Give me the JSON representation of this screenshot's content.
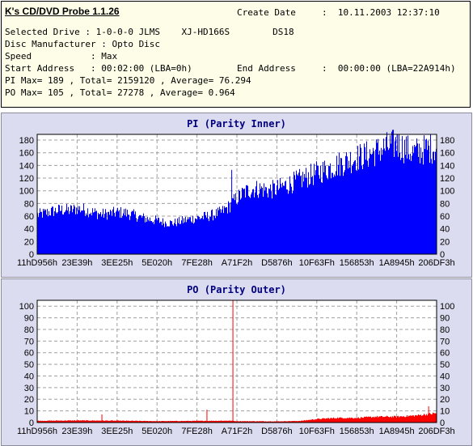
{
  "header": {
    "app_title": "K's CD/DVD Probe 1.1.26",
    "create_date_label": "Create Date",
    "create_date_value": ":  10.11.2003 12:37:10",
    "selected_drive": "Selected Drive : 1-0-0-0 JLMS    XJ-HD166S        DS18",
    "disc_manufacturer": "Disc Manufacturer : Opto Disc",
    "speed": "Speed           : Max",
    "start_address": "Start Address   : 00:02:00 (LBA=0h)",
    "end_address_label": "End Address",
    "end_address_value": ":  00:00:00 (LBA=22A914h)",
    "pi_summary": "PI Max= 189 , Total= 2159120 , Average= 76.294",
    "po_summary": "PO Max= 105 , Total= 27278 , Average= 0.964"
  },
  "chart_data": [
    {
      "type": "bar",
      "title": "PI (Parity Inner)",
      "color": "#0000ff",
      "x_ticks": [
        "11hD956h",
        "23E39h",
        "3EE25h",
        "5E020h",
        "7FE28h",
        "A71F2h",
        "D5876h",
        "10F63Fh",
        "156853h",
        "1A8945h",
        "206DF3h"
      ],
      "ylim": [
        0,
        189
      ],
      "y_ticks": [
        0,
        20,
        40,
        60,
        80,
        100,
        120,
        140,
        160,
        180
      ],
      "grid": true,
      "profile": [
        [
          0.0,
          62
        ],
        [
          0.02,
          65
        ],
        [
          0.04,
          68
        ],
        [
          0.06,
          70
        ],
        [
          0.08,
          69
        ],
        [
          0.1,
          72
        ],
        [
          0.12,
          70
        ],
        [
          0.14,
          66
        ],
        [
          0.16,
          63
        ],
        [
          0.18,
          64
        ],
        [
          0.2,
          66
        ],
        [
          0.22,
          65
        ],
        [
          0.24,
          62
        ],
        [
          0.26,
          58
        ],
        [
          0.28,
          55
        ],
        [
          0.3,
          53
        ],
        [
          0.32,
          50
        ],
        [
          0.34,
          49
        ],
        [
          0.36,
          52
        ],
        [
          0.38,
          55
        ],
        [
          0.4,
          57
        ],
        [
          0.42,
          59
        ],
        [
          0.44,
          62
        ],
        [
          0.46,
          66
        ],
        [
          0.48,
          75
        ],
        [
          0.5,
          88
        ],
        [
          0.52,
          98
        ],
        [
          0.54,
          103
        ],
        [
          0.56,
          103
        ],
        [
          0.58,
          101
        ],
        [
          0.6,
          103
        ],
        [
          0.62,
          108
        ],
        [
          0.64,
          113
        ],
        [
          0.66,
          118
        ],
        [
          0.68,
          123
        ],
        [
          0.7,
          128
        ],
        [
          0.72,
          133
        ],
        [
          0.74,
          138
        ],
        [
          0.76,
          143
        ],
        [
          0.78,
          148
        ],
        [
          0.8,
          152
        ],
        [
          0.82,
          155
        ],
        [
          0.84,
          160
        ],
        [
          0.86,
          165
        ],
        [
          0.88,
          170
        ],
        [
          0.9,
          174
        ],
        [
          0.92,
          168
        ],
        [
          0.94,
          160
        ],
        [
          0.96,
          163
        ],
        [
          0.98,
          167
        ],
        [
          1.0,
          168
        ]
      ],
      "spikes": [
        [
          0.487,
          133
        ],
        [
          0.902,
          189
        ],
        [
          0.985,
          180
        ]
      ]
    },
    {
      "type": "bar",
      "title": "PO (Parity Outer)",
      "color": "#ff0000",
      "x_ticks": [
        "11hD956h",
        "23E39h",
        "3EE25h",
        "5E020h",
        "7FE28h",
        "A71F2h",
        "D5876h",
        "10F63Fh",
        "156853h",
        "1A8945h",
        "206DF3h"
      ],
      "ylim": [
        0,
        105
      ],
      "y_ticks": [
        0,
        10,
        20,
        30,
        40,
        50,
        60,
        70,
        80,
        90,
        100
      ],
      "grid": true,
      "profile": [
        [
          0.0,
          1.5
        ],
        [
          0.1,
          1.8
        ],
        [
          0.2,
          1.6
        ],
        [
          0.3,
          1.2
        ],
        [
          0.4,
          1.4
        ],
        [
          0.48,
          1.6
        ],
        [
          0.5,
          1.2
        ],
        [
          0.6,
          1.0
        ],
        [
          0.66,
          1.4
        ],
        [
          0.7,
          3
        ],
        [
          0.75,
          4
        ],
        [
          0.8,
          4
        ],
        [
          0.85,
          5
        ],
        [
          0.9,
          5
        ],
        [
          0.95,
          6
        ],
        [
          1.0,
          8
        ]
      ],
      "spikes": [
        [
          0.162,
          7
        ],
        [
          0.425,
          11
        ],
        [
          0.49,
          105
        ],
        [
          0.98,
          14
        ]
      ]
    }
  ]
}
